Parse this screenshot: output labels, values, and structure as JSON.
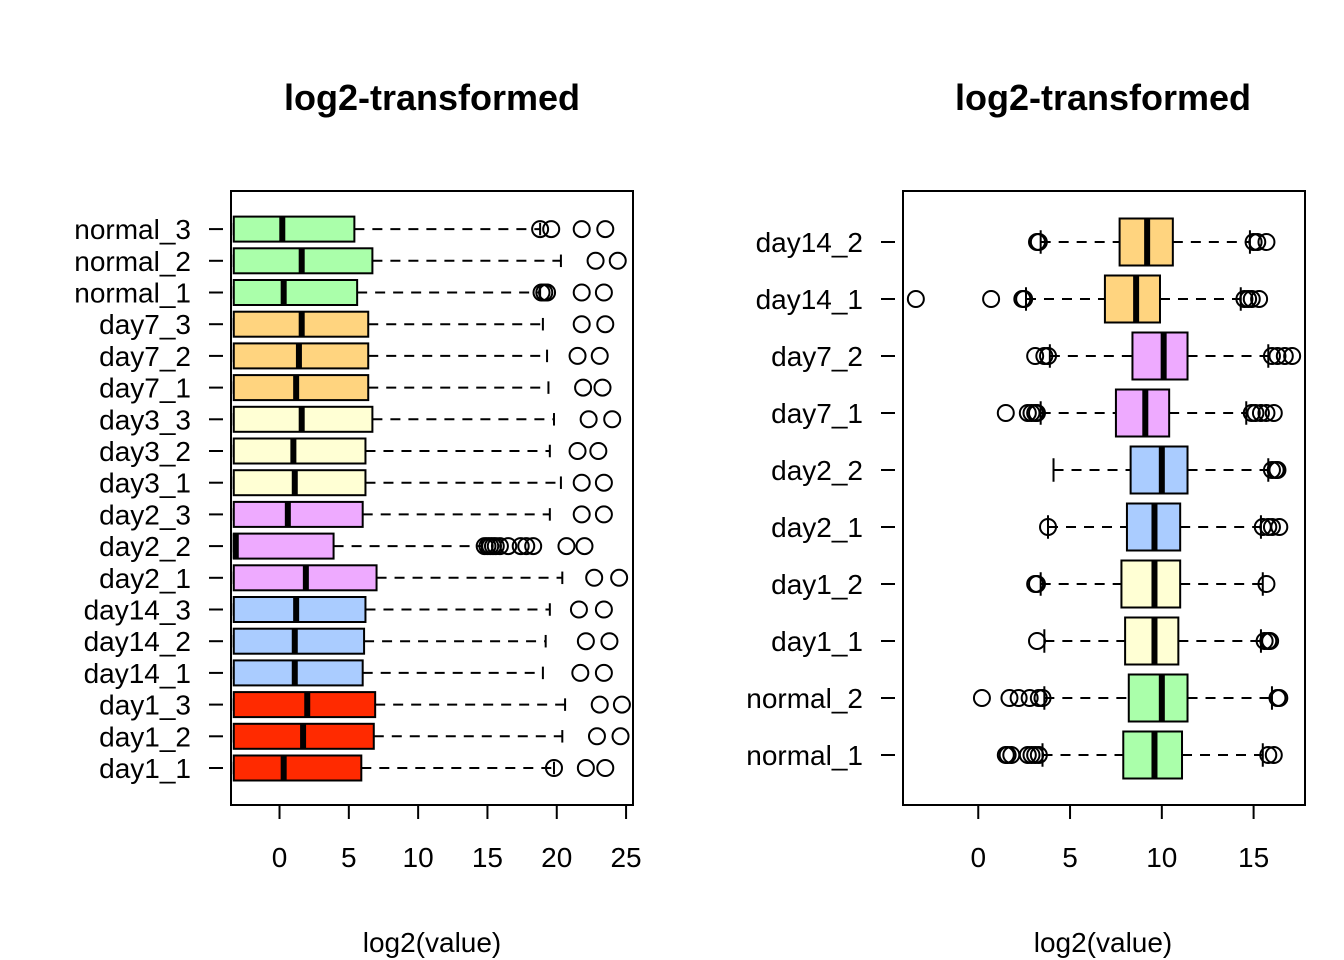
{
  "colors": {
    "normal": "#aaffaa",
    "day7": "#ffd47f",
    "day3": "#ffffd4",
    "day2": "#eeaaff",
    "day14": "#aaccff",
    "day1": "#ff2a00"
  },
  "chart_data": [
    {
      "type": "boxplot",
      "orientation": "horizontal",
      "title": "log2-transformed",
      "xlabel": "log2(value)",
      "xlim": [
        -3.5,
        25.5
      ],
      "xticks": [
        0,
        5,
        10,
        15,
        20,
        25
      ],
      "categories": [
        "day1_1",
        "day1_2",
        "day1_3",
        "day14_1",
        "day14_2",
        "day14_3",
        "day2_1",
        "day2_2",
        "day2_3",
        "day3_1",
        "day3_2",
        "day3_3",
        "day7_1",
        "day7_2",
        "day7_3",
        "normal_1",
        "normal_2",
        "normal_3"
      ],
      "series": [
        {
          "label": "day1_1",
          "color": "#ff2a00",
          "min": -3.3,
          "q1": -3.3,
          "median": 0.3,
          "q3": 5.9,
          "max": 19.8,
          "outliers": [
            19.8,
            22.1,
            23.5
          ]
        },
        {
          "label": "day1_2",
          "color": "#ff2a00",
          "min": -3.3,
          "q1": -3.3,
          "median": 1.7,
          "q3": 6.8,
          "max": 20.4,
          "outliers": [
            22.9,
            24.6
          ]
        },
        {
          "label": "day1_3",
          "color": "#ff2a00",
          "min": -3.3,
          "q1": -3.3,
          "median": 2.0,
          "q3": 6.9,
          "max": 20.6,
          "outliers": [
            23.1,
            24.7
          ]
        },
        {
          "label": "day14_1",
          "color": "#aaccff",
          "min": -3.3,
          "q1": -3.3,
          "median": 1.1,
          "q3": 6.0,
          "max": 19.0,
          "outliers": [
            21.7,
            23.4
          ]
        },
        {
          "label": "day14_2",
          "color": "#aaccff",
          "min": -3.3,
          "q1": -3.3,
          "median": 1.1,
          "q3": 6.1,
          "max": 19.2,
          "outliers": [
            22.1,
            23.8
          ]
        },
        {
          "label": "day14_3",
          "color": "#aaccff",
          "min": -3.3,
          "q1": -3.3,
          "median": 1.2,
          "q3": 6.2,
          "max": 19.5,
          "outliers": [
            21.6,
            23.4
          ]
        },
        {
          "label": "day2_1",
          "color": "#eeaaff",
          "min": -3.3,
          "q1": -3.3,
          "median": 1.9,
          "q3": 7.0,
          "max": 20.4,
          "outliers": [
            22.7,
            24.5
          ]
        },
        {
          "label": "day2_2",
          "color": "#eeaaff",
          "min": -3.3,
          "q1": -3.3,
          "median": -3.3,
          "q3": 3.9,
          "max": 14.6,
          "outliers": [
            14.8,
            15.0,
            15.2,
            15.4,
            15.6,
            15.9,
            16.5,
            17.4,
            17.8,
            18.3,
            20.7,
            22.0
          ]
        },
        {
          "label": "day2_3",
          "color": "#eeaaff",
          "min": -3.3,
          "q1": -3.3,
          "median": 0.6,
          "q3": 6.0,
          "max": 19.5,
          "outliers": [
            21.8,
            23.4
          ]
        },
        {
          "label": "day3_1",
          "color": "#ffffd4",
          "min": -3.3,
          "q1": -3.3,
          "median": 1.1,
          "q3": 6.2,
          "max": 20.3,
          "outliers": [
            21.8,
            23.4
          ]
        },
        {
          "label": "day3_2",
          "color": "#ffffd4",
          "min": -3.3,
          "q1": -3.3,
          "median": 1.0,
          "q3": 6.2,
          "max": 19.5,
          "outliers": [
            21.5,
            23.0
          ]
        },
        {
          "label": "day3_3",
          "color": "#ffffd4",
          "min": -3.3,
          "q1": -3.3,
          "median": 1.6,
          "q3": 6.7,
          "max": 19.8,
          "outliers": [
            22.3,
            24.0
          ]
        },
        {
          "label": "day7_1",
          "color": "#ffd47f",
          "min": -3.3,
          "q1": -3.3,
          "median": 1.2,
          "q3": 6.4,
          "max": 19.4,
          "outliers": [
            21.9,
            23.3
          ]
        },
        {
          "label": "day7_2",
          "color": "#ffd47f",
          "min": -3.3,
          "q1": -3.3,
          "median": 1.4,
          "q3": 6.4,
          "max": 19.3,
          "outliers": [
            21.5,
            23.1
          ]
        },
        {
          "label": "day7_3",
          "color": "#ffd47f",
          "min": -3.3,
          "q1": -3.3,
          "median": 1.6,
          "q3": 6.4,
          "max": 19.0,
          "outliers": [
            21.8,
            23.5
          ]
        },
        {
          "label": "normal_1",
          "color": "#aaffaa",
          "min": -3.3,
          "q1": -3.3,
          "median": 0.3,
          "q3": 5.6,
          "max": 18.8,
          "outliers": [
            18.9,
            19.1,
            19.3,
            21.8,
            23.4
          ]
        },
        {
          "label": "normal_2",
          "color": "#aaffaa",
          "min": -3.3,
          "q1": -3.3,
          "median": 1.6,
          "q3": 6.7,
          "max": 20.3,
          "outliers": [
            22.8,
            24.4
          ]
        },
        {
          "label": "normal_3",
          "color": "#aaffaa",
          "min": -3.3,
          "q1": -3.3,
          "median": 0.2,
          "q3": 5.4,
          "max": 18.8,
          "outliers": [
            18.8,
            19.6,
            21.8,
            23.5
          ]
        }
      ]
    },
    {
      "type": "boxplot",
      "orientation": "horizontal",
      "title": "log2-transformed",
      "xlabel": "log2(value)",
      "xlim": [
        -4.1,
        17.8
      ],
      "xticks": [
        0,
        5,
        10,
        15
      ],
      "categories": [
        "normal_1",
        "normal_2",
        "day1_1",
        "day1_2",
        "day2_1",
        "day2_2",
        "day7_1",
        "day7_2",
        "day14_1",
        "day14_2"
      ],
      "series": [
        {
          "label": "normal_1",
          "color": "#aaffaa",
          "min": 3.5,
          "q1": 7.9,
          "median": 9.6,
          "q3": 11.1,
          "max": 15.5,
          "outliers": [
            1.5,
            1.6,
            1.8,
            2.7,
            2.9,
            3.1,
            3.3,
            15.8,
            16.1
          ]
        },
        {
          "label": "normal_2",
          "color": "#aaffaa",
          "min": 3.6,
          "q1": 8.2,
          "median": 10.0,
          "q3": 11.4,
          "max": 16.0,
          "outliers": [
            0.2,
            1.7,
            2.2,
            2.8,
            3.3,
            3.5,
            16.3,
            16.4
          ]
        },
        {
          "label": "day1_1",
          "color": "#ffffd4",
          "min": 3.6,
          "q1": 8.0,
          "median": 9.6,
          "q3": 10.9,
          "max": 15.4,
          "outliers": [
            3.2,
            15.6,
            15.8,
            15.9
          ]
        },
        {
          "label": "day1_2",
          "color": "#ffffd4",
          "min": 3.4,
          "q1": 7.8,
          "median": 9.6,
          "q3": 11.0,
          "max": 15.5,
          "outliers": [
            3.1,
            3.2,
            15.7
          ]
        },
        {
          "label": "day2_1",
          "color": "#aaccff",
          "min": 3.8,
          "q1": 8.1,
          "median": 9.6,
          "q3": 11.0,
          "max": 15.4,
          "outliers": [
            3.8,
            15.5,
            15.8,
            16.0,
            16.4
          ]
        },
        {
          "label": "day2_2",
          "color": "#aaccff",
          "min": 4.1,
          "q1": 8.3,
          "median": 10.0,
          "q3": 11.4,
          "max": 15.8,
          "outliers": [
            16.0,
            16.2,
            16.3
          ]
        },
        {
          "label": "day7_1",
          "color": "#eeaaff",
          "min": 3.4,
          "q1": 7.5,
          "median": 9.1,
          "q3": 10.4,
          "max": 14.6,
          "outliers": [
            1.5,
            2.7,
            2.9,
            3.1,
            3.2,
            14.9,
            15.1,
            15.4,
            15.7,
            16.1
          ]
        },
        {
          "label": "day7_2",
          "color": "#eeaaff",
          "min": 3.9,
          "q1": 8.4,
          "median": 10.1,
          "q3": 11.4,
          "max": 15.8,
          "outliers": [
            3.1,
            3.6,
            3.8,
            16.0,
            16.3,
            16.7,
            17.1
          ]
        },
        {
          "label": "day14_1",
          "color": "#ffd47f",
          "min": 2.6,
          "q1": 6.9,
          "median": 8.6,
          "q3": 9.9,
          "max": 14.3,
          "outliers": [
            -3.4,
            0.7,
            2.4,
            2.5,
            14.5,
            14.7,
            14.9,
            15.3
          ]
        },
        {
          "label": "day14_2",
          "color": "#ffd47f",
          "min": 3.4,
          "q1": 7.7,
          "median": 9.2,
          "q3": 10.6,
          "max": 14.8,
          "outliers": [
            3.2,
            3.3,
            15.0,
            15.2,
            15.7
          ]
        }
      ]
    }
  ]
}
